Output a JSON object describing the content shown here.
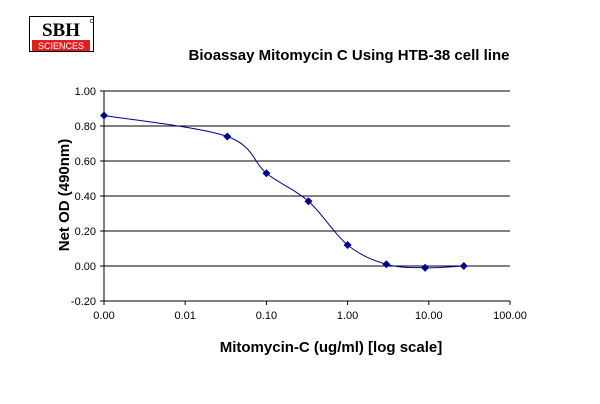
{
  "logo": {
    "top_text": "SBH",
    "bottom_text": "SCIENCES",
    "accent_color": "#e02020"
  },
  "chart_data": {
    "type": "line",
    "title": "Bioassay Mitomycin C Using HTB-38 cell line",
    "xlabel": "Mitomycin-C  (ug/ml) [log scale]",
    "ylabel": "Net OD (490nm)",
    "x_scale": "log",
    "x_tick_labels": [
      "0.00",
      "0.01",
      "0.10",
      "1.00",
      "10.00",
      "100.00"
    ],
    "y_tick_labels": [
      "-0.20",
      "0.00",
      "0.20",
      "0.40",
      "0.60",
      "0.80",
      "1.00"
    ],
    "ylim": [
      -0.2,
      1.0
    ],
    "grid": "horizontal",
    "series": [
      {
        "color": "#00008b",
        "marker": "diamond",
        "smooth": true,
        "x": [
          0.001,
          0.033,
          0.1,
          0.33,
          1.0,
          3.0,
          9.0,
          27.0
        ],
        "y": [
          0.86,
          0.74,
          0.53,
          0.37,
          0.12,
          0.01,
          -0.01,
          0.0
        ]
      }
    ]
  }
}
